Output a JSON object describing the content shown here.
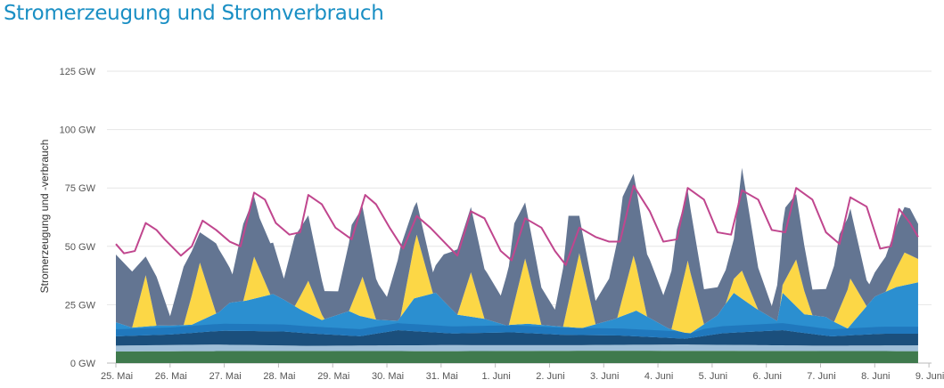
{
  "page": {
    "title": "Stromerzeugung und Stromverbrauch"
  },
  "colors": {
    "title": "#1a8fc4",
    "grid": "#e6e6e6",
    "axis": "#bbbbbb",
    "biomass": "#3f7a4d",
    "hydro": "#9fbfd8",
    "fossil_dark": "#1b4f7c",
    "wind_offshore": "#1f74ba",
    "wind_onshore": "#2b8fd0",
    "solar": "#fcd746",
    "conventional": "#637592",
    "consumption": "#c0468e"
  },
  "chart_data": {
    "type": "area",
    "title": "",
    "ylabel": "Stromerzeugung und -verbrauch",
    "ylim": [
      0,
      125
    ],
    "y_unit": "GW",
    "y_ticks": [
      "0 GW",
      "25 GW",
      "50 GW",
      "75 GW",
      "100 GW",
      "125 GW"
    ],
    "y_tick_values": [
      0,
      25,
      50,
      75,
      100,
      125
    ],
    "x_ticks": [
      "25. Mai",
      "26. Mai",
      "27. Mai",
      "28. Mai",
      "29. Mai",
      "30. Mai",
      "31. Mai",
      "1. Juni",
      "2. Juni",
      "3. Juni",
      "4. Juni",
      "5. Juni",
      "6. Juni",
      "7. Juni",
      "8. Juni",
      "9. Juni"
    ],
    "x_range_days": [
      0,
      15.2
    ],
    "x_unit": "Tage ab 25. Mai",
    "grid": true,
    "stacked": true,
    "series_order": [
      "biomass",
      "hydro",
      "fossil_dark",
      "wind",
      "solar",
      "conventional"
    ],
    "series": [
      {
        "key": "biomass",
        "values": [
          [
            0,
            5
          ],
          [
            3,
            5.2
          ],
          [
            6,
            5.1
          ],
          [
            9,
            5.3
          ],
          [
            12,
            5.2
          ],
          [
            14.8,
            5.1
          ]
        ]
      },
      {
        "key": "hydro",
        "values": [
          [
            0,
            2.5
          ],
          [
            1.8,
            2.8
          ],
          [
            3.5,
            2.2
          ],
          [
            6,
            2.6
          ],
          [
            8.5,
            2.4
          ],
          [
            10.5,
            2.7
          ],
          [
            13,
            2.3
          ],
          [
            14.8,
            2.5
          ]
        ]
      },
      {
        "key": "fossil_dark",
        "values": [
          [
            0,
            4
          ],
          [
            1,
            4.5
          ],
          [
            2,
            6
          ],
          [
            3.1,
            6
          ],
          [
            4.5,
            4
          ],
          [
            5.2,
            6.5
          ],
          [
            6.2,
            5
          ],
          [
            7.3,
            5.5
          ],
          [
            8.2,
            4.5
          ],
          [
            9.3,
            4
          ],
          [
            10.5,
            2.5
          ],
          [
            11.2,
            5
          ],
          [
            12.3,
            6.5
          ],
          [
            13.2,
            4
          ],
          [
            14.1,
            5
          ],
          [
            14.8,
            5
          ]
        ]
      },
      {
        "key": "wind",
        "values": [
          [
            0,
            6
          ],
          [
            0.3,
            3.5
          ],
          [
            0.8,
            4
          ],
          [
            1.4,
            3.5
          ],
          [
            1.9,
            8
          ],
          [
            2.1,
            12
          ],
          [
            2.4,
            13
          ],
          [
            2.9,
            16
          ],
          [
            3.4,
            10
          ],
          [
            3.8,
            6
          ],
          [
            4.3,
            10.5
          ],
          [
            4.8,
            6
          ],
          [
            5.2,
            4
          ],
          [
            5.5,
            14
          ],
          [
            5.9,
            17
          ],
          [
            6.3,
            8
          ],
          [
            6.8,
            6
          ],
          [
            7.2,
            3
          ],
          [
            7.6,
            4
          ],
          [
            8.2,
            3.5
          ],
          [
            8.6,
            3
          ],
          [
            9.2,
            7
          ],
          [
            9.6,
            11
          ],
          [
            10.2,
            4
          ],
          [
            10.6,
            2
          ],
          [
            11.1,
            8
          ],
          [
            11.4,
            17
          ],
          [
            11.8,
            10
          ],
          [
            12.2,
            4
          ],
          [
            12.3,
            16
          ],
          [
            12.7,
            8
          ],
          [
            13.1,
            8
          ],
          [
            13.5,
            3
          ],
          [
            14.0,
            16
          ],
          [
            14.4,
            20
          ],
          [
            14.8,
            22
          ]
        ]
      },
      {
        "key": "solar",
        "values": [
          [
            0,
            0
          ],
          [
            0.3,
            0
          ],
          [
            0.55,
            22
          ],
          [
            0.75,
            0
          ],
          [
            1.25,
            0
          ],
          [
            1.55,
            25
          ],
          [
            1.85,
            0
          ],
          [
            2.35,
            0
          ],
          [
            2.55,
            18
          ],
          [
            2.85,
            0
          ],
          [
            3.3,
            0
          ],
          [
            3.55,
            14
          ],
          [
            3.85,
            0
          ],
          [
            4.3,
            0
          ],
          [
            4.55,
            17
          ],
          [
            4.8,
            0
          ],
          [
            5.25,
            0
          ],
          [
            5.55,
            27
          ],
          [
            5.85,
            0
          ],
          [
            6.3,
            0
          ],
          [
            6.55,
            19
          ],
          [
            6.8,
            0
          ],
          [
            7.25,
            0
          ],
          [
            7.55,
            28
          ],
          [
            7.85,
            0
          ],
          [
            8.25,
            0
          ],
          [
            8.55,
            32
          ],
          [
            8.85,
            0
          ],
          [
            9.25,
            0
          ],
          [
            9.55,
            24
          ],
          [
            9.8,
            0
          ],
          [
            10.25,
            0
          ],
          [
            10.55,
            31
          ],
          [
            10.85,
            0
          ],
          [
            11.25,
            0
          ],
          [
            11.55,
            12
          ],
          [
            11.85,
            0
          ],
          [
            12.25,
            0
          ],
          [
            12.55,
            20
          ],
          [
            12.85,
            0
          ],
          [
            13.25,
            0
          ],
          [
            13.55,
            20
          ],
          [
            13.85,
            0
          ],
          [
            14.2,
            0
          ],
          [
            14.55,
            14
          ],
          [
            14.8,
            10
          ]
        ]
      },
      {
        "key": "conventional",
        "values": [
          [
            0,
            29
          ],
          [
            0.3,
            24
          ],
          [
            0.55,
            8
          ],
          [
            0.75,
            21
          ],
          [
            1.0,
            4
          ],
          [
            1.25,
            25
          ],
          [
            1.55,
            13
          ],
          [
            1.85,
            30
          ],
          [
            2.15,
            12
          ],
          [
            2.35,
            33
          ],
          [
            2.65,
            22
          ],
          [
            2.9,
            22
          ],
          [
            3.1,
            9
          ],
          [
            3.3,
            30
          ],
          [
            3.55,
            28
          ],
          [
            3.85,
            12
          ],
          [
            4.1,
            10
          ],
          [
            4.35,
            34
          ],
          [
            4.55,
            30
          ],
          [
            4.85,
            15
          ],
          [
            5.0,
            10
          ],
          [
            5.25,
            30
          ],
          [
            5.55,
            14
          ],
          [
            5.85,
            9
          ],
          [
            6.05,
            20
          ],
          [
            6.3,
            28
          ],
          [
            6.55,
            28
          ],
          [
            6.85,
            20
          ],
          [
            7.1,
            12
          ],
          [
            7.35,
            34
          ],
          [
            7.55,
            24
          ],
          [
            7.85,
            16
          ],
          [
            8.1,
            7
          ],
          [
            8.35,
            37
          ],
          [
            8.55,
            16
          ],
          [
            8.85,
            10
          ],
          [
            9.1,
            18
          ],
          [
            9.35,
            43
          ],
          [
            9.55,
            35
          ],
          [
            9.85,
            25
          ],
          [
            10.1,
            13
          ],
          [
            10.35,
            33
          ],
          [
            10.55,
            30
          ],
          [
            10.85,
            15
          ],
          [
            11.1,
            12
          ],
          [
            11.4,
            17
          ],
          [
            11.55,
            44
          ],
          [
            11.85,
            18
          ],
          [
            12.1,
            5
          ],
          [
            12.35,
            31
          ],
          [
            12.55,
            28
          ],
          [
            12.85,
            11
          ],
          [
            13.1,
            12
          ],
          [
            13.35,
            32
          ],
          [
            13.55,
            30
          ],
          [
            13.9,
            8
          ],
          [
            14.2,
            15
          ],
          [
            14.45,
            19
          ],
          [
            14.65,
            20
          ],
          [
            14.8,
            15
          ]
        ]
      },
      {
        "key": "consumption",
        "values": [
          [
            0,
            51
          ],
          [
            0.15,
            47
          ],
          [
            0.35,
            48
          ],
          [
            0.55,
            60
          ],
          [
            0.75,
            57
          ],
          [
            0.9,
            53
          ],
          [
            1.2,
            46
          ],
          [
            1.4,
            50
          ],
          [
            1.6,
            61
          ],
          [
            1.85,
            57
          ],
          [
            2.1,
            52
          ],
          [
            2.3,
            50
          ],
          [
            2.55,
            73
          ],
          [
            2.75,
            70
          ],
          [
            2.95,
            60
          ],
          [
            3.2,
            55
          ],
          [
            3.4,
            56
          ],
          [
            3.55,
            72
          ],
          [
            3.8,
            68
          ],
          [
            4.05,
            58
          ],
          [
            4.35,
            53
          ],
          [
            4.6,
            72
          ],
          [
            4.8,
            68
          ],
          [
            5.05,
            58
          ],
          [
            5.3,
            49
          ],
          [
            5.55,
            63
          ],
          [
            5.8,
            58
          ],
          [
            6.05,
            52
          ],
          [
            6.3,
            46
          ],
          [
            6.55,
            65
          ],
          [
            6.8,
            62
          ],
          [
            7.1,
            48
          ],
          [
            7.3,
            44
          ],
          [
            7.55,
            62
          ],
          [
            7.85,
            58
          ],
          [
            8.1,
            48
          ],
          [
            8.3,
            42
          ],
          [
            8.55,
            58
          ],
          [
            8.85,
            54
          ],
          [
            9.1,
            52
          ],
          [
            9.3,
            52
          ],
          [
            9.55,
            76
          ],
          [
            9.85,
            65
          ],
          [
            10.1,
            52
          ],
          [
            10.35,
            53
          ],
          [
            10.55,
            75
          ],
          [
            10.85,
            70
          ],
          [
            11.1,
            56
          ],
          [
            11.35,
            55
          ],
          [
            11.55,
            74
          ],
          [
            11.85,
            70
          ],
          [
            12.1,
            57
          ],
          [
            12.35,
            56
          ],
          [
            12.55,
            75
          ],
          [
            12.85,
            70
          ],
          [
            13.1,
            56
          ],
          [
            13.35,
            51
          ],
          [
            13.55,
            71
          ],
          [
            13.85,
            67
          ],
          [
            14.1,
            49
          ],
          [
            14.3,
            50
          ],
          [
            14.45,
            66
          ],
          [
            14.65,
            60
          ],
          [
            14.8,
            54
          ]
        ]
      }
    ]
  }
}
